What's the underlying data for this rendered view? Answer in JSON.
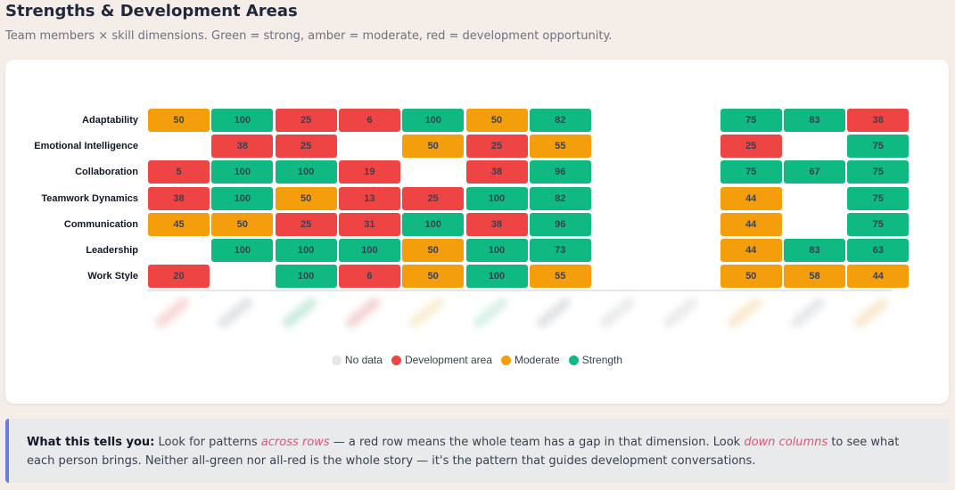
{
  "page": {
    "title": "Strengths & Development Areas",
    "subtitle": "Team members × skill dimensions. Green = strong, amber = moderate, red = development opportunity."
  },
  "colors": {
    "strength": "#10b981",
    "moderate": "#f59e0b",
    "development": "#ef4444",
    "no_data": "#e5e7eb"
  },
  "chart_data": {
    "type": "heatmap",
    "rows": [
      "Adaptability",
      "Emotional Intelligence",
      "Collaboration",
      "Teamwork Dynamics",
      "Communication",
      "Leadership",
      "Work Style"
    ],
    "column_count": 12,
    "values": [
      [
        50,
        100,
        25,
        6,
        100,
        50,
        82,
        null,
        null,
        75,
        83,
        38
      ],
      [
        null,
        38,
        25,
        null,
        50,
        25,
        55,
        null,
        null,
        25,
        null,
        75
      ],
      [
        5,
        100,
        100,
        19,
        null,
        38,
        96,
        null,
        null,
        75,
        67,
        75
      ],
      [
        38,
        100,
        50,
        13,
        25,
        100,
        82,
        null,
        null,
        44,
        null,
        75
      ],
      [
        45,
        50,
        25,
        31,
        100,
        38,
        96,
        null,
        null,
        44,
        null,
        75
      ],
      [
        null,
        100,
        100,
        100,
        50,
        100,
        73,
        null,
        null,
        44,
        83,
        63
      ],
      [
        20,
        null,
        100,
        6,
        50,
        100,
        55,
        null,
        null,
        50,
        58,
        44
      ]
    ],
    "thresholds": {
      "development_below": 40,
      "strength_from": 60
    },
    "legend": {
      "placement": "bottom",
      "items": [
        {
          "label": "No data",
          "key": "no_data"
        },
        {
          "label": "Development area",
          "key": "development"
        },
        {
          "label": "Moderate",
          "key": "moderate"
        },
        {
          "label": "Strength",
          "key": "strength"
        }
      ]
    }
  },
  "note": {
    "lead": "What this tells you:",
    "part1": " Look for patterns ",
    "em1": "across rows",
    "part2": " — a red row means the whole team has a gap in that dimension. Look ",
    "em2": "down columns",
    "part3": " to see what each person brings. Neither all-green nor all-red is the whole story — it's the pattern that guides development conversations."
  }
}
